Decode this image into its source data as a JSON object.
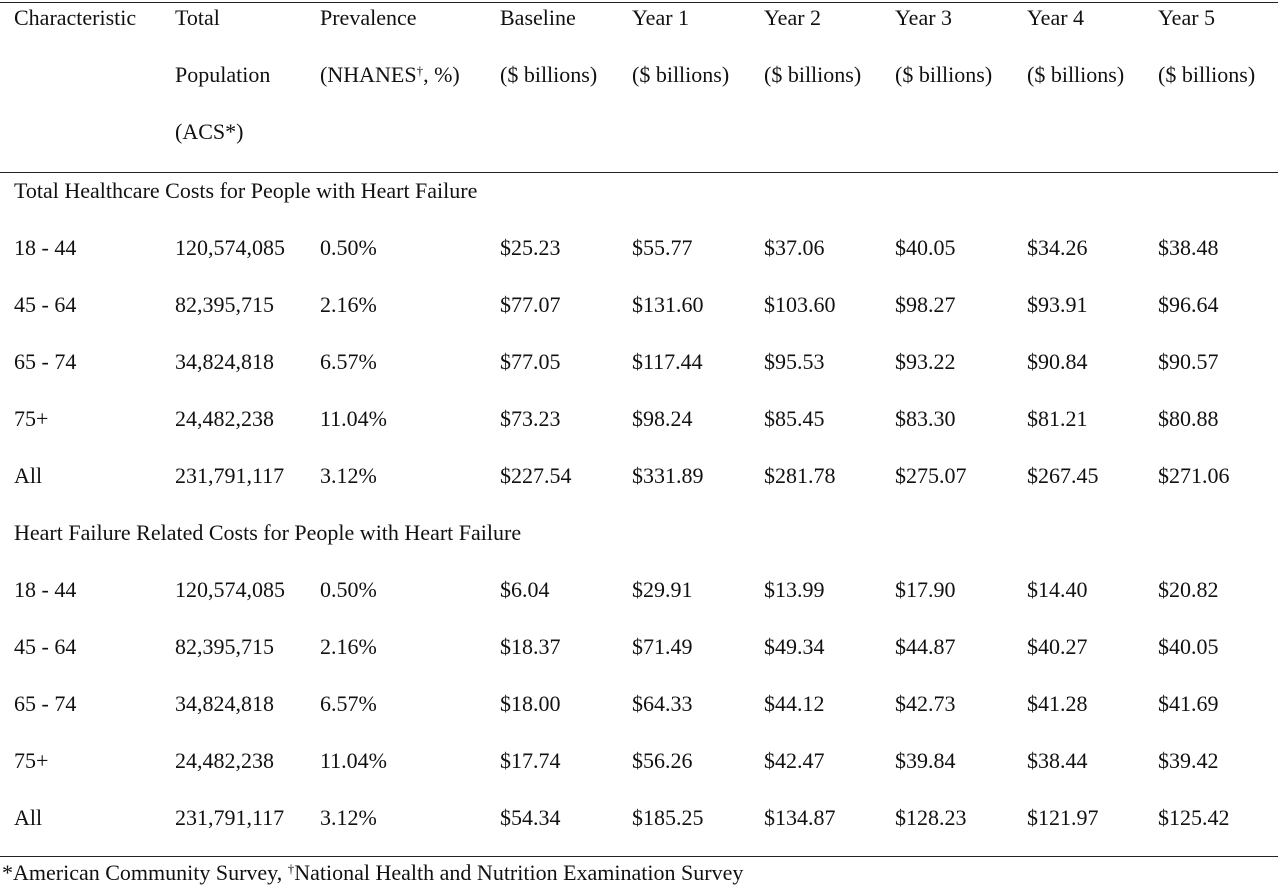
{
  "table": {
    "columns": [
      {
        "lines": [
          "Characteristic"
        ]
      },
      {
        "lines": [
          "Total",
          "Population",
          "(ACS*)"
        ]
      },
      {
        "lines": [
          "Prevalence",
          "(NHANES",
          "†",
          ", %)"
        ],
        "prevalence": true
      },
      {
        "lines": [
          "Baseline",
          "($ billions)"
        ]
      },
      {
        "lines": [
          "Year 1",
          "($ billions)"
        ]
      },
      {
        "lines": [
          "Year 2",
          "($ billions)"
        ]
      },
      {
        "lines": [
          "Year 3",
          "($ billions)"
        ]
      },
      {
        "lines": [
          "Year 4",
          "($ billions)"
        ]
      },
      {
        "lines": [
          "Year 5",
          "($ billions)"
        ]
      }
    ],
    "sections": [
      {
        "title": "Total Healthcare Costs for People with Heart Failure",
        "rows": [
          [
            "18 - 44",
            "120,574,085",
            "0.50%",
            "$25.23",
            "$55.77",
            "$37.06",
            "$40.05",
            "$34.26",
            "$38.48"
          ],
          [
            "45 - 64",
            "82,395,715",
            "2.16%",
            "$77.07",
            "$131.60",
            "$103.60",
            "$98.27",
            "$93.91",
            "$96.64"
          ],
          [
            "65 - 74",
            "34,824,818",
            "6.57%",
            "$77.05",
            "$117.44",
            "$95.53",
            "$93.22",
            "$90.84",
            "$90.57"
          ],
          [
            "75+",
            "24,482,238",
            "11.04%",
            "$73.23",
            "$98.24",
            "$85.45",
            "$83.30",
            "$81.21",
            "$80.88"
          ],
          [
            "All",
            "231,791,117",
            "3.12%",
            "$227.54",
            "$331.89",
            "$281.78",
            "$275.07",
            "$267.45",
            "$271.06"
          ]
        ]
      },
      {
        "title": "Heart Failure Related Costs for People with Heart Failure",
        "rows": [
          [
            "18 - 44",
            "120,574,085",
            "0.50%",
            "$6.04",
            "$29.91",
            "$13.99",
            "$17.90",
            "$14.40",
            "$20.82"
          ],
          [
            "45 - 64",
            "82,395,715",
            "2.16%",
            "$18.37",
            "$71.49",
            "$49.34",
            "$44.87",
            "$40.27",
            "$40.05"
          ],
          [
            "65 - 74",
            "34,824,818",
            "6.57%",
            "$18.00",
            "$64.33",
            "$44.12",
            "$42.73",
            "$41.28",
            "$41.69"
          ],
          [
            "75+",
            "24,482,238",
            "11.04%",
            "$17.74",
            "$56.26",
            "$42.47",
            "$39.84",
            "$38.44",
            "$39.42"
          ],
          [
            "All",
            "231,791,117",
            "3.12%",
            "$54.34",
            "$185.25",
            "$134.87",
            "$128.23",
            "$121.97",
            "$125.42"
          ]
        ]
      }
    ]
  },
  "footnote": {
    "part1": "*American Community Survey, ",
    "dagger": "†",
    "part2": "National Health and Nutrition Examination Survey"
  }
}
